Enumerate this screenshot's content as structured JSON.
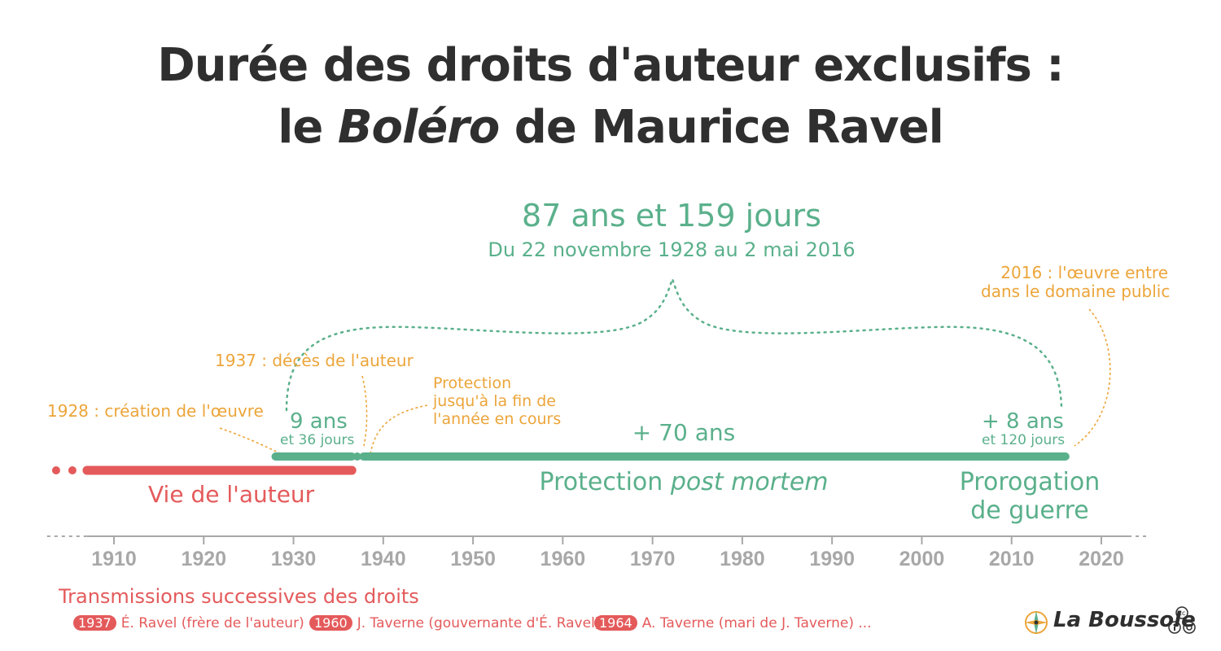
{
  "title": {
    "line1": "Durée des droits d'auteur exclusifs :",
    "line2_pre": "le ",
    "line2_italic": "Boléro",
    "line2_post": " de Maurice Ravel"
  },
  "total": {
    "duration": "87 ans et 159 jours",
    "range": "Du 22 novembre 1928 au 2 mai 2016"
  },
  "annotations": {
    "creation": "1928 : création de l'œuvre",
    "death": "1937 : décès de l'auteur",
    "protection_line1": "Protection",
    "protection_line2": "jusqu'à la fin de",
    "protection_line3": "l'année en cours",
    "public_domain_line1": "2016 : l'œuvre entre",
    "public_domain_line2": "dans le domaine public"
  },
  "segments": {
    "life_span_main": "9 ans",
    "life_span_sub": "et 36 jours",
    "post_mortem_span": "+ 70 ans",
    "war_span_main": "+ 8 ans",
    "war_span_sub": "et 120 jours",
    "life_label": "Vie de l'auteur",
    "post_mortem_label_pre": "Protection ",
    "post_mortem_label_italic": "post mortem",
    "war_label_line1": "Prorogation",
    "war_label_line2": "de guerre"
  },
  "timeline": {
    "min": 1903,
    "max": 2025,
    "ticks": [
      1910,
      1920,
      1930,
      1940,
      1950,
      1960,
      1970,
      1980,
      1990,
      2000,
      2010,
      2020
    ],
    "periods": [
      {
        "kind": "life",
        "start": 1907.0,
        "end": 1936.5
      },
      {
        "kind": "copyright",
        "start": 1928.0,
        "end": 1936.5
      },
      {
        "kind": "copyright",
        "start": 1937.8,
        "end": 2008.0
      },
      {
        "kind": "copyright",
        "start": 2008.1,
        "end": 2016.0
      }
    ]
  },
  "transmissions": {
    "heading": "Transmissions successives des droits",
    "items": [
      {
        "year": "1937",
        "text": "É. Ravel (frère de l'auteur)"
      },
      {
        "year": "1960",
        "text": "J. Taverne (gouvernante d'É. Ravel)"
      },
      {
        "year": "1964",
        "text": "A. Taverne (mari de J. Taverne) ..."
      }
    ]
  },
  "brand": {
    "name": "La Boussole",
    "icon": "compass-icon",
    "license_icon": "cc-by-icon"
  },
  "colors": {
    "green": "#5ab08b",
    "red": "#e45a5b",
    "orange": "#eca53a",
    "title": "#2f2f2f",
    "axis": "#a8a8a8"
  }
}
